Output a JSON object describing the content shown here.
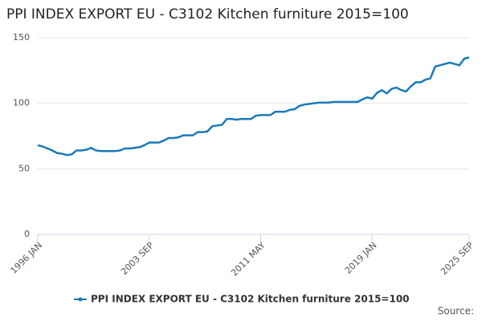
{
  "chart_data": {
    "type": "line",
    "title": "PPI INDEX EXPORT EU - C3102 Kitchen furniture 2015=100",
    "source": "Source:",
    "x": [
      "1996 JAN",
      "1996 MAY",
      "1996 SEP",
      "1997 JAN",
      "1997 MAY",
      "1997 SEP",
      "1998 JAN",
      "1998 MAY",
      "1998 SEP",
      "1999 JAN",
      "1999 MAY",
      "1999 SEP",
      "2000 JAN",
      "2000 MAY",
      "2000 SEP",
      "2001 JAN",
      "2001 MAY",
      "2001 SEP",
      "2002 JAN",
      "2002 MAY",
      "2002 SEP",
      "2003 JAN",
      "2003 MAY",
      "2003 SEP",
      "2004 JAN",
      "2004 MAY",
      "2004 SEP",
      "2005 JAN",
      "2005 MAY",
      "2005 SEP",
      "2006 JAN",
      "2006 MAY",
      "2006 SEP",
      "2007 JAN",
      "2007 MAY",
      "2007 SEP",
      "2008 JAN",
      "2008 MAY",
      "2008 SEP",
      "2009 JAN",
      "2009 MAY",
      "2009 SEP",
      "2010 JAN",
      "2010 MAY",
      "2010 SEP",
      "2011 JAN",
      "2011 MAY",
      "2011 SEP",
      "2012 JAN",
      "2012 MAY",
      "2012 SEP",
      "2013 JAN",
      "2013 MAY",
      "2013 SEP",
      "2014 JAN",
      "2014 MAY",
      "2014 SEP",
      "2015 JAN",
      "2015 MAY",
      "2015 SEP",
      "2016 JAN",
      "2016 MAY",
      "2016 SEP",
      "2017 JAN",
      "2017 MAY",
      "2017 SEP",
      "2018 JAN",
      "2018 MAY",
      "2018 SEP",
      "2019 JAN",
      "2019 MAY",
      "2019 SEP",
      "2020 JAN",
      "2020 MAY",
      "2020 SEP",
      "2021 JAN",
      "2021 MAY",
      "2021 SEP",
      "2022 JAN",
      "2022 MAY",
      "2022 SEP",
      "2023 JAN",
      "2023 MAY",
      "2023 SEP",
      "2024 JAN",
      "2024 MAY",
      "2024 SEP",
      "2025 JAN",
      "2025 MAY",
      "2025 SEP"
    ],
    "series": [
      {
        "name": "PPI INDEX EXPORT EU - C3102 Kitchen furniture 2015=100",
        "color": "#1a7ab8",
        "values": [
          68,
          67,
          65.5,
          64,
          62,
          61.5,
          60.5,
          61,
          64,
          64,
          64.5,
          66,
          64,
          63.5,
          63.5,
          63.5,
          63.5,
          64,
          65.5,
          65.5,
          66,
          66.5,
          68,
          70,
          70,
          70,
          71.5,
          73.5,
          73.5,
          74,
          75.5,
          75.5,
          75.5,
          78,
          78,
          78.5,
          82.5,
          83,
          83.5,
          88,
          88,
          87.5,
          88,
          88,
          88,
          90.5,
          91,
          91,
          91,
          93.5,
          93.5,
          93.5,
          95,
          95.5,
          98,
          99,
          99.5,
          100,
          100.5,
          100.5,
          100.5,
          101,
          101,
          101,
          101,
          101,
          101,
          103,
          104.5,
          103.5,
          108,
          110,
          107.5,
          111,
          112,
          110,
          109,
          113,
          116,
          116,
          118,
          119,
          128,
          129,
          130,
          131,
          130,
          129,
          134,
          135
        ]
      }
    ],
    "xticks": [
      "1996 JAN",
      "2003 SEP",
      "2011 MAY",
      "2019 JAN",
      "2025 SEP"
    ],
    "ylim": [
      0,
      150
    ],
    "yticks": [
      0,
      50,
      100,
      150
    ],
    "grid": true
  }
}
